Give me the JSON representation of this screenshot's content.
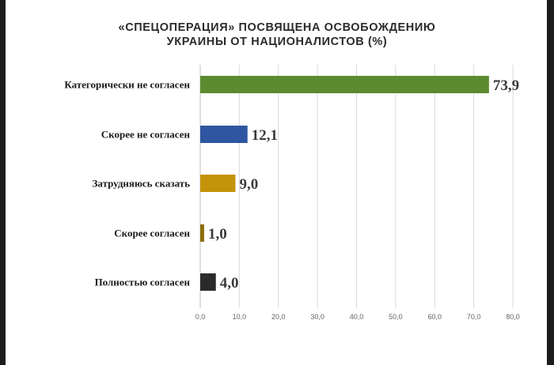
{
  "chart_data": {
    "type": "bar",
    "orientation": "horizontal",
    "title_line1": "«СПЕЦОПЕРАЦИЯ» ПОСВЯЩЕНА ОСВОБОЖДЕНИЮ",
    "title_line2": "УКРАИНЫ ОТ НАЦИОНАЛИСТОВ (%)",
    "categories": [
      "Категорически не согласен",
      "Скорее не согласен",
      "Затрудняюсь сказать",
      "Скорее согласен",
      "Полностью согласен"
    ],
    "values": [
      73.9,
      12.1,
      9.0,
      1.0,
      4.0
    ],
    "value_labels": [
      "73,9",
      "12,1",
      "9,0",
      "1,0",
      "4,0"
    ],
    "colors": [
      "#5c8a2e",
      "#2f56a0",
      "#c4930a",
      "#8c6e0c",
      "#2a2a2a"
    ],
    "xlim": [
      0,
      80
    ],
    "xticks": [
      "0,0",
      "10,0",
      "20,0",
      "30,0",
      "40,0",
      "50,0",
      "60,0",
      "70,0",
      "80,0"
    ],
    "grid": true,
    "legend": "none"
  }
}
